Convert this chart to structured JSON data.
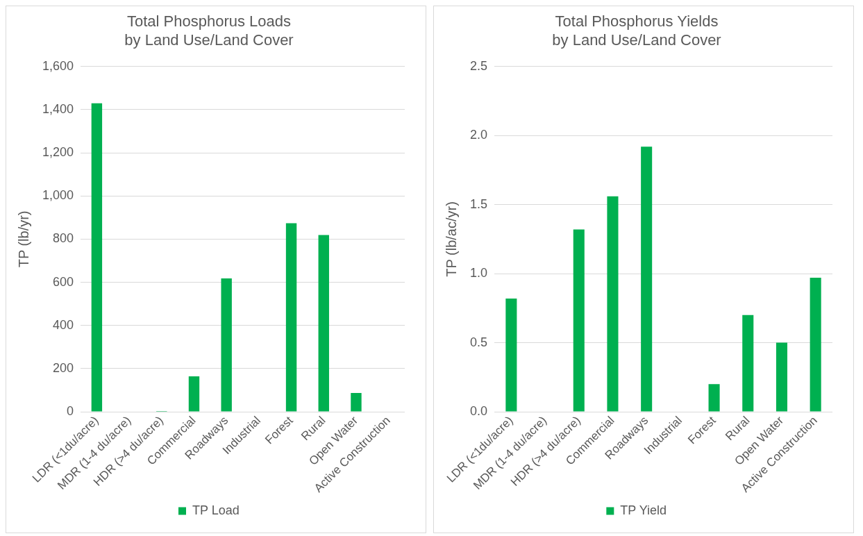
{
  "chart_data": [
    {
      "type": "bar",
      "title": "Total Phosphorus Loads\nby Land Use/Land Cover",
      "ylabel": "TP (lb/yr)",
      "categories": [
        "LDR (<1du/acre)",
        "MDR (1-4 du/acre)",
        "HDR (>4 du/acre)",
        "Commercial",
        "Roadways",
        "Industrial",
        "Forest",
        "Rural",
        "Open Water",
        "Active Construction"
      ],
      "series": [
        {
          "name": "TP Load",
          "color": "#00b050",
          "values": [
            1430,
            0,
            3,
            164,
            618,
            0,
            874,
            819,
            87,
            0
          ]
        }
      ],
      "ylim": [
        0,
        1600
      ],
      "yticks": [
        {
          "value": 0,
          "label": "0"
        },
        {
          "value": 200,
          "label": "200"
        },
        {
          "value": 400,
          "label": "400"
        },
        {
          "value": 600,
          "label": "600"
        },
        {
          "value": 800,
          "label": "800"
        },
        {
          "value": 1000,
          "label": "1,000"
        },
        {
          "value": 1200,
          "label": "1,200"
        },
        {
          "value": 1400,
          "label": "1,400"
        },
        {
          "value": 1600,
          "label": "1,600"
        }
      ],
      "grid": "y",
      "legend": "bottom"
    },
    {
      "type": "bar",
      "title": "Total Phosphorus Yields\nby Land Use/Land Cover",
      "ylabel": "TP (lb/ac/yr)",
      "categories": [
        "LDR (<1du/acre)",
        "MDR (1-4 du/acre)",
        "HDR (>4 du/acre)",
        "Commercial",
        "Roadways",
        "Industrial",
        "Forest",
        "Rural",
        "Open Water",
        "Active Construction"
      ],
      "series": [
        {
          "name": "TP Yield",
          "color": "#00b050",
          "values": [
            0.82,
            0,
            1.32,
            1.56,
            1.92,
            0,
            0.2,
            0.7,
            0.5,
            0.97
          ]
        }
      ],
      "ylim": [
        0,
        2.5
      ],
      "yticks": [
        {
          "value": 0,
          "label": "0.0"
        },
        {
          "value": 0.5,
          "label": "0.5"
        },
        {
          "value": 1,
          "label": "1.0"
        },
        {
          "value": 1.5,
          "label": "1.5"
        },
        {
          "value": 2,
          "label": "2.0"
        },
        {
          "value": 2.5,
          "label": "2.5"
        }
      ],
      "grid": "y",
      "legend": "bottom"
    }
  ]
}
